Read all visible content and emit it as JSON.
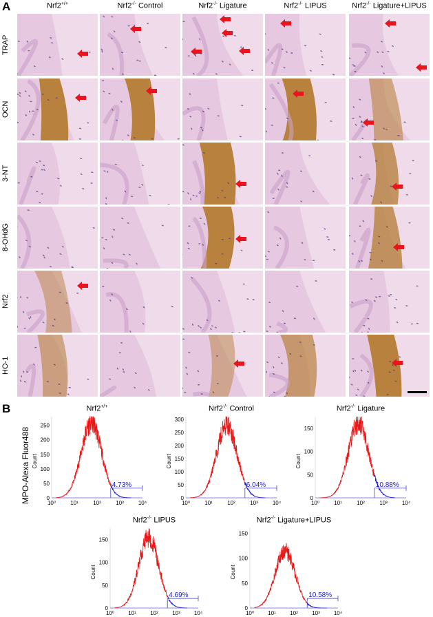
{
  "panel_a": {
    "label": "A",
    "columns": [
      {
        "base": "Nrf2",
        "sup": "+/+",
        "rest": ""
      },
      {
        "base": "Nrf2",
        "sup": "-/-",
        "rest": " Control"
      },
      {
        "base": "Nrf2",
        "sup": "-/-",
        "rest": " Ligature"
      },
      {
        "base": "Nrf2",
        "sup": "-/-",
        "rest": " LIPUS"
      },
      {
        "base": "Nrf2",
        "sup": "-/-",
        "rest": " Ligature+LIPUS"
      }
    ],
    "rows": [
      "TRAP",
      "OCN",
      "3-NT",
      "8-OHdG",
      "Nrf2",
      "HO-1"
    ],
    "arrow_color": "#e8141e"
  },
  "panel_b": {
    "label": "B",
    "ylabel_main": "MPO-Alexa Fluor488",
    "series_colors": {
      "ungated": "#e81818",
      "gated": "#1a1acc"
    }
  },
  "chart_data": [
    {
      "type": "histogram",
      "title_base": "Nrf2",
      "title_sup": "+/+",
      "title_rest": "",
      "ylabel": "Count",
      "xscale": "log",
      "xlim": [
        1,
        10000
      ],
      "xticks": [
        "10⁰",
        "10¹",
        "10²",
        "10³",
        "10⁴"
      ],
      "yticks": [
        0,
        50,
        100,
        150,
        200,
        250
      ],
      "ylim": [
        0,
        280
      ],
      "mode_log10": 1.75,
      "peak_count": 260,
      "gate_percent": "4.73%"
    },
    {
      "type": "histogram",
      "title_base": "Nrf2",
      "title_sup": "-/-",
      "title_rest": " Control",
      "ylabel": "Count",
      "xscale": "log",
      "xlim": [
        1,
        10000
      ],
      "xticks": [
        "10⁰",
        "10¹",
        "10²",
        "10³",
        "10⁴"
      ],
      "yticks": [
        0,
        50,
        100,
        150,
        200,
        250,
        300
      ],
      "ylim": [
        0,
        310
      ],
      "mode_log10": 1.8,
      "peak_count": 280,
      "gate_percent": "6.04%"
    },
    {
      "type": "histogram",
      "title_base": "Nrf2",
      "title_sup": "-/-",
      "title_rest": " Ligature",
      "ylabel": "Count",
      "xscale": "log",
      "xlim": [
        1,
        10000
      ],
      "xticks": [
        "10⁰",
        "10¹",
        "10²",
        "10³",
        "10⁴"
      ],
      "yticks": [
        0,
        50,
        100,
        150
      ],
      "ylim": [
        0,
        175
      ],
      "mode_log10": 1.9,
      "peak_count": 160,
      "gate_percent": "10.88%"
    },
    {
      "type": "histogram",
      "title_base": "Nrf2",
      "title_sup": "-/-",
      "title_rest": " LIPUS",
      "ylabel": "Count",
      "xscale": "log",
      "xlim": [
        1,
        10000
      ],
      "xticks": [
        "10⁰",
        "10¹",
        "10²",
        "10³",
        "10⁴"
      ],
      "yticks": [
        0,
        50,
        100,
        150
      ],
      "ylim": [
        0,
        175
      ],
      "mode_log10": 1.75,
      "peak_count": 155,
      "gate_percent": "4.69%"
    },
    {
      "type": "histogram",
      "title_base": "Nrf2",
      "title_sup": "-/-",
      "title_rest": " Ligature+LIPUS",
      "ylabel": "Count",
      "xscale": "log",
      "xlim": [
        1,
        10000
      ],
      "xticks": [
        "10⁰",
        "10¹",
        "10²",
        "10³",
        "10⁴"
      ],
      "yticks": [
        0,
        50,
        100,
        150
      ],
      "ylim": [
        0,
        160
      ],
      "mode_log10": 1.6,
      "peak_count": 115,
      "gate_percent": "10.58%"
    }
  ]
}
